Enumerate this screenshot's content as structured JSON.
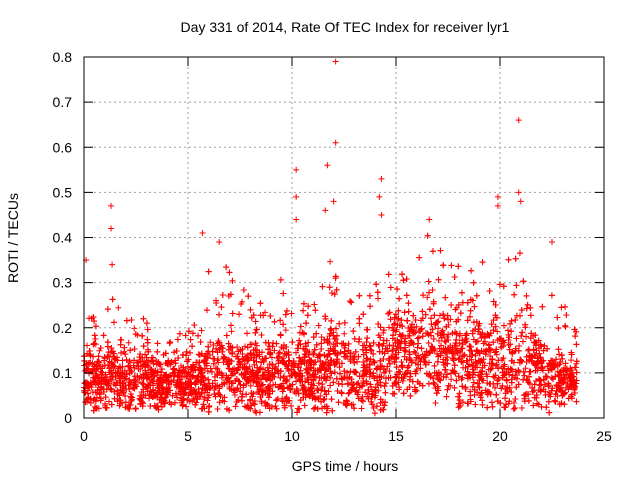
{
  "chart_data": {
    "type": "scatter",
    "title": "Day 331 of 2014, Rate Of TEC Index for receiver lyr1",
    "xlabel": "GPS time / hours",
    "ylabel": "ROTI / TECUs",
    "xlim": [
      0,
      25
    ],
    "ylim": [
      0,
      0.8
    ],
    "xticks": [
      0,
      5,
      10,
      15,
      20,
      25
    ],
    "yticks": [
      0,
      0.1,
      0.2,
      0.3,
      0.4,
      0.5,
      0.6,
      0.7,
      0.8
    ],
    "xtick_labels": [
      "0",
      "5",
      "10",
      "15",
      "20",
      "25"
    ],
    "ytick_labels": [
      "0",
      "0.1",
      "0.2",
      "0.3",
      "0.4",
      "0.5",
      "0.6",
      "0.7",
      "0.8"
    ],
    "grid": true,
    "marker": "+",
    "color": "#ff0000",
    "series": [
      {
        "name": "ROTI",
        "notable_points": [
          {
            "x": 0.1,
            "y": 0.35
          },
          {
            "x": 1.3,
            "y": 0.47
          },
          {
            "x": 1.3,
            "y": 0.42
          },
          {
            "x": 1.35,
            "y": 0.34
          },
          {
            "x": 5.7,
            "y": 0.41
          },
          {
            "x": 6.5,
            "y": 0.39
          },
          {
            "x": 10.2,
            "y": 0.55
          },
          {
            "x": 10.2,
            "y": 0.49
          },
          {
            "x": 10.2,
            "y": 0.44
          },
          {
            "x": 11.7,
            "y": 0.56
          },
          {
            "x": 11.6,
            "y": 0.46
          },
          {
            "x": 12.1,
            "y": 0.79
          },
          {
            "x": 12.1,
            "y": 0.61
          },
          {
            "x": 12.0,
            "y": 0.48
          },
          {
            "x": 14.3,
            "y": 0.53
          },
          {
            "x": 14.2,
            "y": 0.49
          },
          {
            "x": 14.3,
            "y": 0.45
          },
          {
            "x": 16.6,
            "y": 0.44
          },
          {
            "x": 19.9,
            "y": 0.49
          },
          {
            "x": 19.9,
            "y": 0.47
          },
          {
            "x": 20.9,
            "y": 0.66
          },
          {
            "x": 20.9,
            "y": 0.5
          },
          {
            "x": 21.0,
            "y": 0.48
          },
          {
            "x": 22.5,
            "y": 0.39
          }
        ],
        "envelope_hours": [
          0.0,
          0.5,
          1.0,
          1.5,
          2.0,
          2.5,
          3.0,
          3.5,
          4.0,
          4.5,
          5.0,
          5.5,
          6.0,
          6.5,
          7.0,
          7.5,
          8.0,
          8.5,
          9.0,
          9.5,
          10.0,
          10.5,
          11.0,
          11.5,
          12.0,
          12.5,
          13.0,
          13.5,
          14.0,
          14.5,
          15.0,
          15.5,
          16.0,
          16.5,
          17.0,
          17.5,
          18.0,
          18.5,
          19.0,
          19.5,
          20.0,
          20.5,
          21.0,
          21.5,
          22.0,
          22.5,
          23.0,
          23.5
        ],
        "envelope_low": [
          0.03,
          0.02,
          0.02,
          0.03,
          0.02,
          0.02,
          0.03,
          0.02,
          0.03,
          0.03,
          0.02,
          0.02,
          0.02,
          0.02,
          0.02,
          0.03,
          0.02,
          0.02,
          0.02,
          0.02,
          0.02,
          0.02,
          0.02,
          0.02,
          0.02,
          0.02,
          0.02,
          0.02,
          0.01,
          0.02,
          0.05,
          0.06,
          0.06,
          0.05,
          0.05,
          0.04,
          0.04,
          0.03,
          0.03,
          0.02,
          0.02,
          0.02,
          0.02,
          0.03,
          0.02,
          0.02,
          0.03,
          0.03
        ],
        "envelope_high": [
          0.28,
          0.22,
          0.22,
          0.3,
          0.22,
          0.22,
          0.22,
          0.18,
          0.19,
          0.22,
          0.2,
          0.25,
          0.33,
          0.36,
          0.33,
          0.3,
          0.28,
          0.26,
          0.28,
          0.32,
          0.33,
          0.32,
          0.26,
          0.35,
          0.4,
          0.3,
          0.28,
          0.27,
          0.33,
          0.33,
          0.33,
          0.32,
          0.37,
          0.41,
          0.4,
          0.33,
          0.38,
          0.35,
          0.34,
          0.38,
          0.4,
          0.36,
          0.38,
          0.33,
          0.25,
          0.33,
          0.26,
          0.21
        ],
        "envelope_center": [
          0.1,
          0.08,
          0.08,
          0.1,
          0.09,
          0.08,
          0.09,
          0.08,
          0.08,
          0.09,
          0.08,
          0.09,
          0.1,
          0.11,
          0.1,
          0.1,
          0.1,
          0.09,
          0.1,
          0.11,
          0.11,
          0.11,
          0.1,
          0.11,
          0.12,
          0.11,
          0.1,
          0.1,
          0.1,
          0.13,
          0.16,
          0.15,
          0.16,
          0.16,
          0.15,
          0.14,
          0.14,
          0.13,
          0.13,
          0.12,
          0.13,
          0.13,
          0.14,
          0.12,
          0.1,
          0.1,
          0.09,
          0.08
        ],
        "data_x_range": [
          0,
          23.7
        ]
      }
    ]
  }
}
